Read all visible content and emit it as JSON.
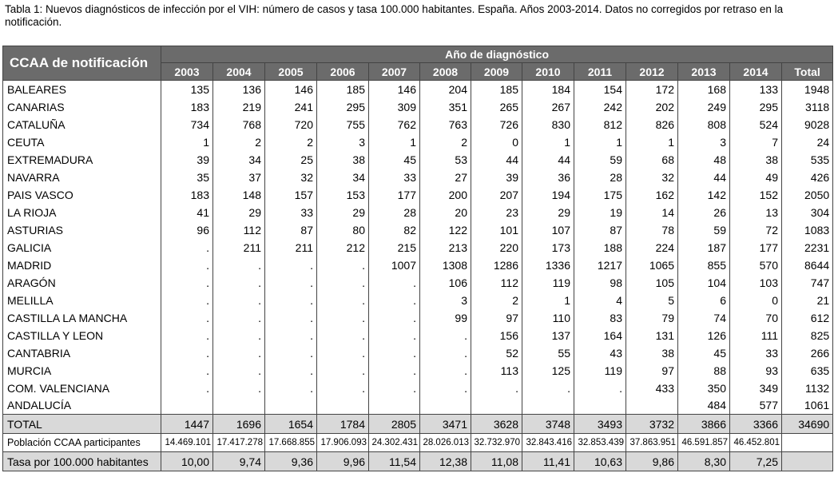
{
  "caption": "Tabla 1: Nuevos diagnósticos de infección por el VIH: número de casos y tasa 100.000 habitantes. España. Años 2003-2014. Datos no corregidos por retraso en la notificación.",
  "header": {
    "ccaa": "CCAA de notificación",
    "group": "Año de diagnóstico",
    "years": [
      "2003",
      "2004",
      "2005",
      "2006",
      "2007",
      "2008",
      "2009",
      "2010",
      "2011",
      "2012",
      "2013",
      "2014",
      "Total"
    ]
  },
  "rows": [
    {
      "name": "BALEARES",
      "values": [
        "135",
        "136",
        "146",
        "185",
        "146",
        "204",
        "185",
        "184",
        "154",
        "172",
        "168",
        "133",
        "1948"
      ]
    },
    {
      "name": "CANARIAS",
      "values": [
        "183",
        "219",
        "241",
        "295",
        "309",
        "351",
        "265",
        "267",
        "242",
        "202",
        "249",
        "295",
        "3118"
      ]
    },
    {
      "name": "CATALUÑA",
      "values": [
        "734",
        "768",
        "720",
        "755",
        "762",
        "763",
        "726",
        "830",
        "812",
        "826",
        "808",
        "524",
        "9028"
      ]
    },
    {
      "name": "CEUTA",
      "values": [
        "1",
        "2",
        "2",
        "3",
        "1",
        "2",
        "0",
        "1",
        "1",
        "1",
        "3",
        "7",
        "24"
      ]
    },
    {
      "name": "EXTREMADURA",
      "values": [
        "39",
        "34",
        "25",
        "38",
        "45",
        "53",
        "44",
        "44",
        "59",
        "68",
        "48",
        "38",
        "535"
      ]
    },
    {
      "name": "NAVARRA",
      "values": [
        "35",
        "37",
        "32",
        "34",
        "33",
        "27",
        "39",
        "36",
        "28",
        "32",
        "44",
        "49",
        "426"
      ]
    },
    {
      "name": "PAIS VASCO",
      "values": [
        "183",
        "148",
        "157",
        "153",
        "177",
        "200",
        "207",
        "194",
        "175",
        "162",
        "142",
        "152",
        "2050"
      ]
    },
    {
      "name": "LA RIOJA",
      "values": [
        "41",
        "29",
        "33",
        "29",
        "28",
        "20",
        "23",
        "29",
        "19",
        "14",
        "26",
        "13",
        "304"
      ]
    },
    {
      "name": "ASTURIAS",
      "values": [
        "96",
        "112",
        "87",
        "80",
        "82",
        "122",
        "101",
        "107",
        "87",
        "78",
        "59",
        "72",
        "1083"
      ]
    },
    {
      "name": "GALICIA",
      "values": [
        ".",
        "211",
        "211",
        "212",
        "215",
        "213",
        "220",
        "173",
        "188",
        "224",
        "187",
        "177",
        "2231"
      ]
    },
    {
      "name": "MADRID",
      "values": [
        ".",
        ".",
        ".",
        ".",
        "1007",
        "1308",
        "1286",
        "1336",
        "1217",
        "1065",
        "855",
        "570",
        "8644"
      ]
    },
    {
      "name": "ARAGÓN",
      "values": [
        ".",
        ".",
        ".",
        ".",
        ".",
        "106",
        "112",
        "119",
        "98",
        "105",
        "104",
        "103",
        "747"
      ]
    },
    {
      "name": "MELILLA",
      "values": [
        ".",
        ".",
        ".",
        ".",
        ".",
        "3",
        "2",
        "1",
        "4",
        "5",
        "6",
        "0",
        "21"
      ]
    },
    {
      "name": "CASTILLA LA MANCHA",
      "values": [
        ".",
        ".",
        ".",
        ".",
        ".",
        "99",
        "97",
        "110",
        "83",
        "79",
        "74",
        "70",
        "612"
      ]
    },
    {
      "name": "CASTILLA Y LEON",
      "values": [
        ".",
        ".",
        ".",
        ".",
        ".",
        ".",
        "156",
        "137",
        "164",
        "131",
        "126",
        "111",
        "825"
      ]
    },
    {
      "name": "CANTABRIA",
      "values": [
        ".",
        ".",
        ".",
        ".",
        ".",
        ".",
        "52",
        "55",
        "43",
        "38",
        "45",
        "33",
        "266"
      ]
    },
    {
      "name": "MURCIA",
      "values": [
        ".",
        ".",
        ".",
        ".",
        ".",
        ".",
        "113",
        "125",
        "119",
        "97",
        "88",
        "93",
        "635"
      ]
    },
    {
      "name": "COM. VALENCIANA",
      "values": [
        ".",
        ".",
        ".",
        ".",
        ".",
        ".",
        ".",
        ".",
        ".",
        "433",
        "350",
        "349",
        "1132"
      ]
    },
    {
      "name": "ANDALUCÍA",
      "values": [
        "",
        "",
        "",
        "",
        "",
        "",
        "",
        "",
        "",
        "",
        "484",
        "577",
        "1061"
      ]
    }
  ],
  "total": {
    "name": "TOTAL",
    "values": [
      "1447",
      "1696",
      "1654",
      "1784",
      "2805",
      "3471",
      "3628",
      "3748",
      "3493",
      "3732",
      "3866",
      "3366",
      "34690"
    ]
  },
  "poblacion": {
    "name": "Población CCAA participantes",
    "values": [
      "14.469.101",
      "17.417.278",
      "17.668.855",
      "17.906.093",
      "24.302.431",
      "28.026.013",
      "32.732.970",
      "32.843.416",
      "32.853.439",
      "37.863.951",
      "46.591.857",
      "46.452.801",
      ""
    ]
  },
  "tasa": {
    "name": "Tasa por 100.000 habitantes",
    "values": [
      "10,00",
      "9,74",
      "9,36",
      "9,96",
      "11,54",
      "12,38",
      "11,08",
      "11,41",
      "10,63",
      "9,86",
      "8,30",
      "7,25",
      ""
    ]
  }
}
